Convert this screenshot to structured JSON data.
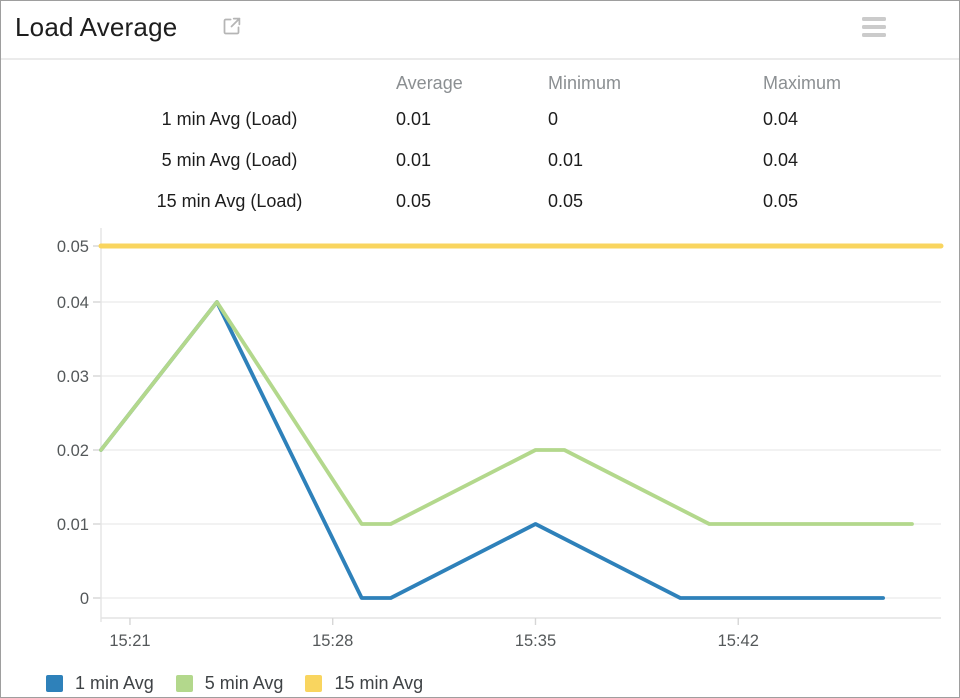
{
  "header": {
    "title": "Load Average",
    "popout_icon": "open-in-new-window",
    "menu_icon": "hamburger-menu"
  },
  "stats_table": {
    "columns": [
      "Average",
      "Minimum",
      "Maximum"
    ],
    "rows": [
      {
        "label": "1 min Avg (Load)",
        "values": [
          "0.01",
          "0",
          "0.04"
        ]
      },
      {
        "label": "5 min Avg (Load)",
        "values": [
          "0.01",
          "0.01",
          "0.04"
        ]
      },
      {
        "label": "15 min Avg (Load)",
        "values": [
          "0.05",
          "0.05",
          "0.05"
        ]
      }
    ]
  },
  "chart_data": {
    "type": "line",
    "title": "Load Average",
    "grid": "horizontal",
    "legend_position": "bottom",
    "x_axis": {
      "range": [
        "15:20",
        "15:49"
      ],
      "ticks": [
        "15:21",
        "15:28",
        "15:35",
        "15:42"
      ]
    },
    "y_axis": {
      "lim": [
        0,
        0.05
      ],
      "ticks": [
        0,
        0.01,
        0.02,
        0.03,
        0.04,
        0.05
      ],
      "tick_labels": [
        "0",
        "0.01",
        "0.02",
        "0.03",
        "0.04",
        "0.05"
      ]
    },
    "series": [
      {
        "name": "1 min Avg",
        "color": "#2e81ba",
        "points": [
          [
            "15:20",
            0.02
          ],
          [
            "15:24",
            0.04
          ],
          [
            "15:29",
            0
          ],
          [
            "15:30",
            0
          ],
          [
            "15:35",
            0.01
          ],
          [
            "15:40",
            0
          ],
          [
            "15:47",
            0
          ]
        ]
      },
      {
        "name": "5 min Avg",
        "color": "#b3d88c",
        "points": [
          [
            "15:20",
            0.02
          ],
          [
            "15:24",
            0.04
          ],
          [
            "15:29",
            0.01
          ],
          [
            "15:30",
            0.01
          ],
          [
            "15:35",
            0.02
          ],
          [
            "15:36",
            0.02
          ],
          [
            "15:41",
            0.01
          ],
          [
            "15:48",
            0.01
          ]
        ]
      },
      {
        "name": "15 min Avg",
        "color": "#f9d55f",
        "points": [
          [
            "15:20",
            0.05
          ],
          [
            "15:49",
            0.05
          ]
        ]
      }
    ]
  }
}
